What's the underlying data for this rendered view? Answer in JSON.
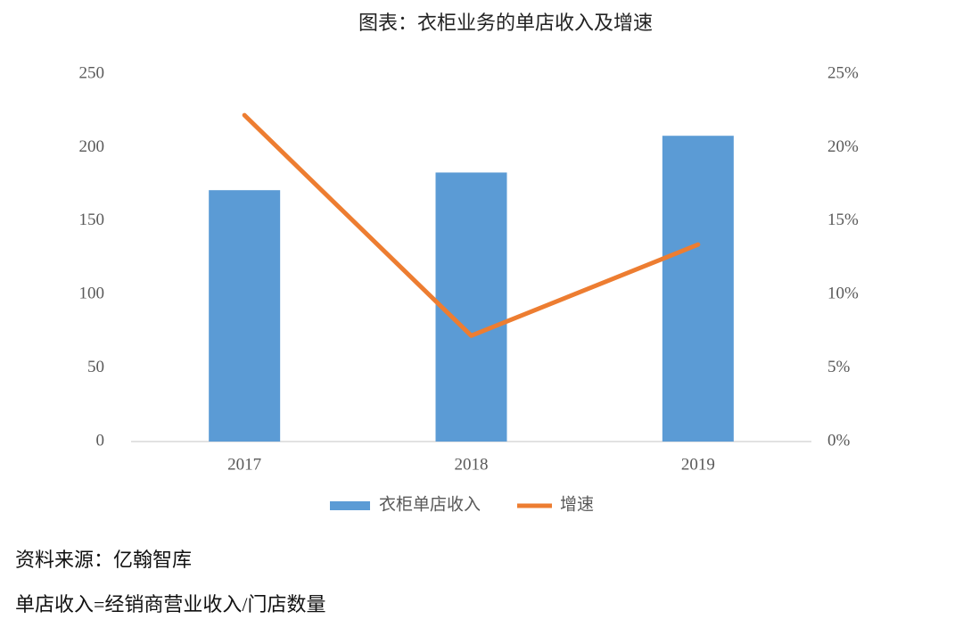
{
  "chart_data": {
    "type": "combo",
    "title": "图表：衣柜业务的单店收入及增速",
    "categories": [
      "2017",
      "2018",
      "2019"
    ],
    "series": [
      {
        "name": "衣柜单店收入",
        "type": "bar",
        "color": "#5b9bd5",
        "values": [
          171,
          183,
          208
        ]
      },
      {
        "name": "增速",
        "type": "line",
        "color": "#ed7d31",
        "axis": "y2",
        "values": [
          22.2,
          7.2,
          13.4
        ]
      }
    ],
    "ylim": [
      0,
      250
    ],
    "yticks": [
      0,
      50,
      100,
      150,
      200,
      250
    ],
    "y2lim": [
      0,
      25
    ],
    "y2ticks": [
      {
        "value": 0,
        "label": "0%"
      },
      {
        "value": 5,
        "label": "5%"
      },
      {
        "value": 10,
        "label": "10%"
      },
      {
        "value": 15,
        "label": "15%"
      },
      {
        "value": 20,
        "label": "20%"
      },
      {
        "value": 25,
        "label": "25%"
      }
    ],
    "grid": false,
    "legend": "bottom"
  },
  "footer": {
    "source": "资料来源：亿翰智库",
    "note": "单店收入=经销商营业收入/门店数量"
  }
}
